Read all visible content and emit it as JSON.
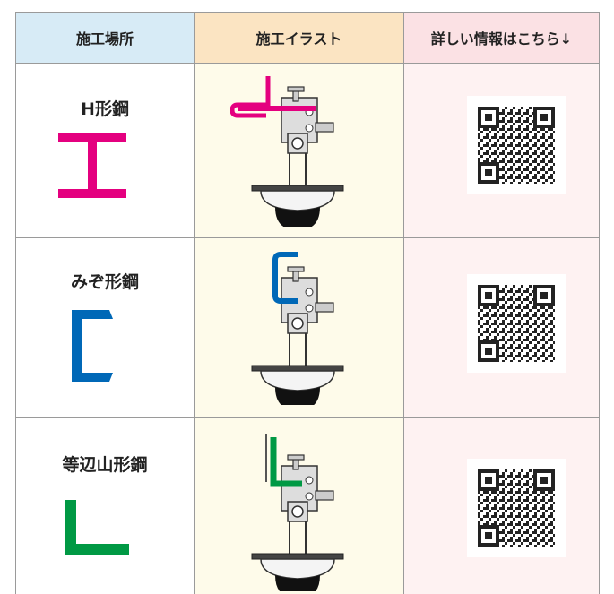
{
  "table": {
    "header": [
      "施工場所",
      "施工イラスト",
      "詳しい情報はこちら↓"
    ],
    "rows": [
      [
        "H形鋼"
      ],
      [
        "みぞ形鋼"
      ],
      [
        "等辺山形鋼"
      ]
    ]
  }
}
